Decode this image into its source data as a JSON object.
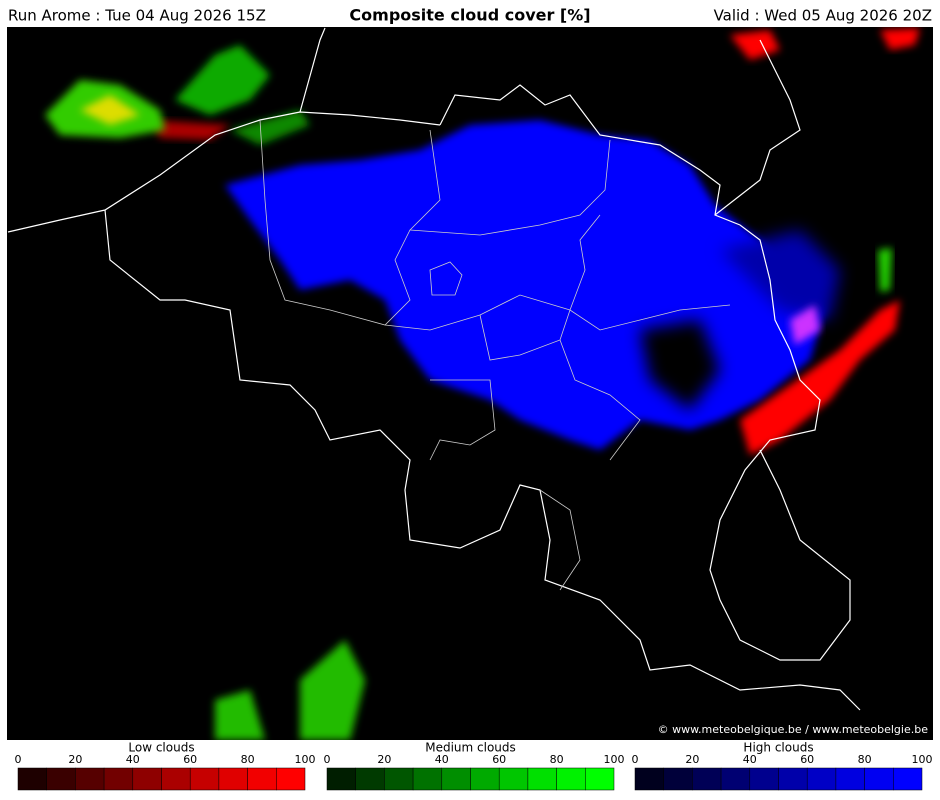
{
  "header": {
    "run": "Run Arome : Tue 04 Aug 2026 15Z",
    "title": "Composite cloud cover [%]",
    "valid": "Valid : Wed 05 Aug 2026 20Z"
  },
  "credit": "© www.meteobelgique.be / www.meteobelgie.be",
  "legends": [
    {
      "title": "Low clouds",
      "ticks": [
        0,
        20,
        40,
        60,
        80,
        100
      ],
      "colors": [
        "#1e0000",
        "#3a0000",
        "#560000",
        "#720000",
        "#8e0000",
        "#aa0000",
        "#c60000",
        "#e00000",
        "#f20000",
        "#ff0000"
      ]
    },
    {
      "title": "Medium clouds",
      "ticks": [
        0,
        20,
        40,
        60,
        80,
        100
      ],
      "colors": [
        "#001e00",
        "#003a00",
        "#005600",
        "#007200",
        "#008e00",
        "#00aa00",
        "#00c600",
        "#00e000",
        "#00f200",
        "#00ff00"
      ]
    },
    {
      "title": "High clouds",
      "ticks": [
        0,
        20,
        40,
        60,
        80,
        100
      ],
      "colors": [
        "#00001e",
        "#00003a",
        "#000056",
        "#000072",
        "#00008e",
        "#0000aa",
        "#0000c6",
        "#0000e0",
        "#0000f2",
        "#0000ff"
      ]
    }
  ]
}
